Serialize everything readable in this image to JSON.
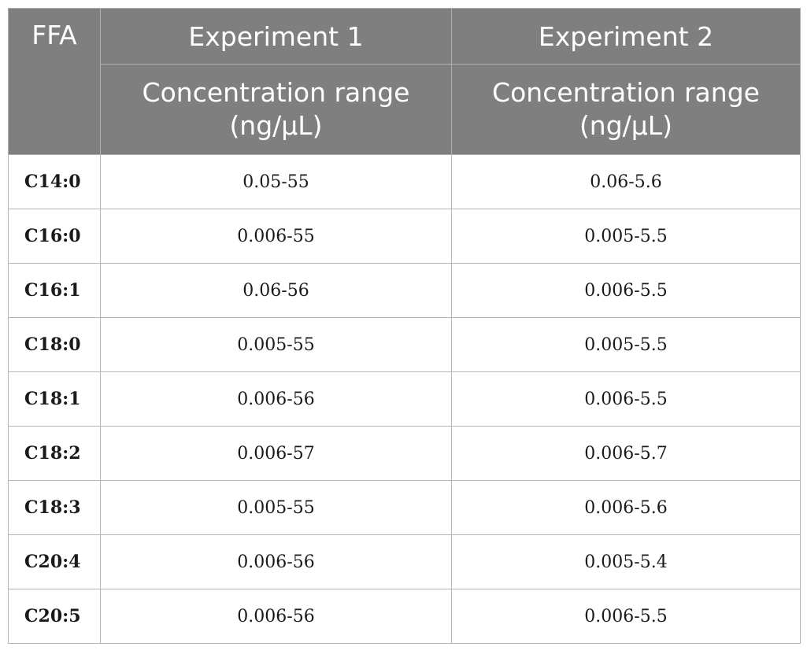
{
  "table": {
    "header": {
      "ffa": "FFA",
      "experiment1": "Experiment 1",
      "experiment2": "Experiment 2",
      "sub1_line1": "Concentration range",
      "sub1_line2": "(ng/μL)",
      "sub2_line1": "Concentration range",
      "sub2_line2": "(ng/μL)"
    },
    "rows": [
      {
        "ffa": "C14:0",
        "exp1": "0.05-55",
        "exp2": "0.06-5.6"
      },
      {
        "ffa": "C16:0",
        "exp1": "0.006-55",
        "exp2": "0.005-5.5"
      },
      {
        "ffa": "C16:1",
        "exp1": "0.06-56",
        "exp2": "0.006-5.5"
      },
      {
        "ffa": "C18:0",
        "exp1": "0.005-55",
        "exp2": "0.005-5.5"
      },
      {
        "ffa": "C18:1",
        "exp1": "0.006-56",
        "exp2": "0.006-5.5"
      },
      {
        "ffa": "C18:2",
        "exp1": "0.006-57",
        "exp2": "0.006-5.7"
      },
      {
        "ffa": "C18:3",
        "exp1": "0.005-55",
        "exp2": "0.006-5.6"
      },
      {
        "ffa": "C20:4",
        "exp1": "0.006-56",
        "exp2": "0.005-5.4"
      },
      {
        "ffa": "C20:5",
        "exp1": "0.006-56",
        "exp2": "0.006-5.5"
      }
    ]
  }
}
